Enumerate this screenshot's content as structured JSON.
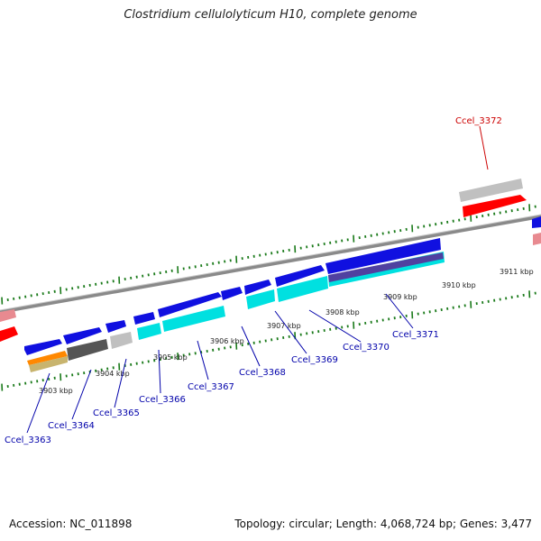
{
  "title": "Clostridium cellulolyticum H10, complete genome",
  "accession_text": "Accession: NC_011898",
  "summary_text": "Topology: circular; Length: 4,068,724 bp; Genes: 3,477",
  "colors": {
    "backbone": "#888888",
    "tick": "#1a7a1a",
    "cds": "#1010e0",
    "cds_alt": "#00e0e0",
    "gray_feature": "#c0c0c0",
    "dark_feature": "#555555",
    "orange_feature": "#ff8800",
    "olive_feature": "#c8b46e",
    "red_feature": "#ff0000",
    "pink_feature": "#e88a90",
    "purple_feature": "#5040a0",
    "label_blue": "#0000aa",
    "label_red": "#cc0000"
  },
  "scale_labels": [
    {
      "text": "3903 kbp"
    },
    {
      "text": "3904 kbp"
    },
    {
      "text": "3905 kbp"
    },
    {
      "text": "3906 kbp"
    },
    {
      "text": "3907 kbp"
    },
    {
      "text": "3908 kbp"
    },
    {
      "text": "3909 kbp"
    },
    {
      "text": "3910 kbp"
    },
    {
      "text": "3911 kbp"
    }
  ],
  "gene_labels": [
    {
      "text": "Ccel_3363",
      "color": "blue"
    },
    {
      "text": "Ccel_3364",
      "color": "blue"
    },
    {
      "text": "Ccel_3365",
      "color": "blue"
    },
    {
      "text": "Ccel_3366",
      "color": "blue"
    },
    {
      "text": "Ccel_3367",
      "color": "blue"
    },
    {
      "text": "Ccel_3368",
      "color": "blue"
    },
    {
      "text": "Ccel_3369",
      "color": "blue"
    },
    {
      "text": "Ccel_3370",
      "color": "blue"
    },
    {
      "text": "Ccel_3371",
      "color": "blue"
    },
    {
      "text": "Ccel_3372",
      "color": "red"
    }
  ]
}
